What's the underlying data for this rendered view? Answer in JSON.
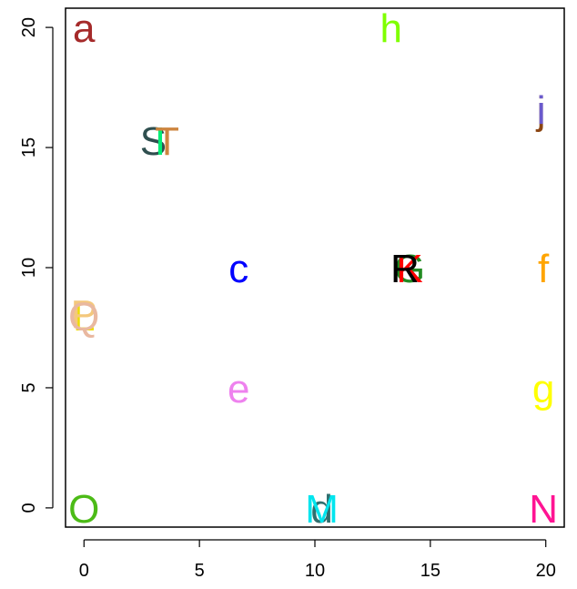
{
  "chart_data": {
    "type": "scatter",
    "title": "",
    "xlabel": "",
    "ylabel": "",
    "xlim": [
      -0.8,
      20.8
    ],
    "ylim": [
      -0.8,
      20.8
    ],
    "xticks": [
      0,
      5,
      10,
      15,
      20
    ],
    "yticks": [
      0,
      5,
      10,
      15,
      20
    ],
    "xtick_labels": [
      "0",
      "5",
      "10",
      "15",
      "20"
    ],
    "ytick_labels": [
      "0",
      "5",
      "10",
      "15",
      "20"
    ],
    "grid": false,
    "points": [
      {
        "label": "a",
        "x": 0,
        "y": 20,
        "color": "#a52a2a"
      },
      {
        "label": "h",
        "x": 13.3,
        "y": 20,
        "color": "#7fff00"
      },
      {
        "label": "j",
        "x": 19.8,
        "y": 16.6,
        "color": "#8b4513"
      },
      {
        "label": "i",
        "x": 19.8,
        "y": 16.6,
        "color": "#6a5acd"
      },
      {
        "label": "S",
        "x": 3,
        "y": 15.3,
        "color": "#2f4f4f"
      },
      {
        "label": "I",
        "x": 3.3,
        "y": 15.3,
        "color": "#00ee76"
      },
      {
        "label": "T",
        "x": 3.6,
        "y": 15.3,
        "color": "#cd853f"
      },
      {
        "label": "c",
        "x": 6.7,
        "y": 10,
        "color": "#0000ff"
      },
      {
        "label": "G",
        "x": 14.1,
        "y": 10,
        "color": "#228b22"
      },
      {
        "label": "K",
        "x": 14.1,
        "y": 10,
        "color": "#ff0000"
      },
      {
        "label": "R",
        "x": 13.9,
        "y": 10,
        "color": "#000000"
      },
      {
        "label": "f",
        "x": 19.9,
        "y": 10,
        "color": "#ffa500"
      },
      {
        "label": "L",
        "x": 0,
        "y": 8,
        "color": "#eedd00"
      },
      {
        "label": "P",
        "x": 0,
        "y": 8.1,
        "color": "#f4c87c"
      },
      {
        "label": "Q",
        "x": 0,
        "y": 8,
        "color": "#e9b8a0"
      },
      {
        "label": "e",
        "x": 6.7,
        "y": 5,
        "color": "#ee82ee"
      },
      {
        "label": "g",
        "x": 19.9,
        "y": 5,
        "color": "#ffff00"
      },
      {
        "label": "O",
        "x": 0,
        "y": 0,
        "color": "#4cbb17"
      },
      {
        "label": "d",
        "x": 10.3,
        "y": 0,
        "color": "#2f6f6f"
      },
      {
        "label": "M",
        "x": 10.3,
        "y": 0,
        "color": "#00e5ee"
      },
      {
        "label": "N",
        "x": 19.9,
        "y": 0,
        "color": "#ff1493"
      }
    ]
  }
}
